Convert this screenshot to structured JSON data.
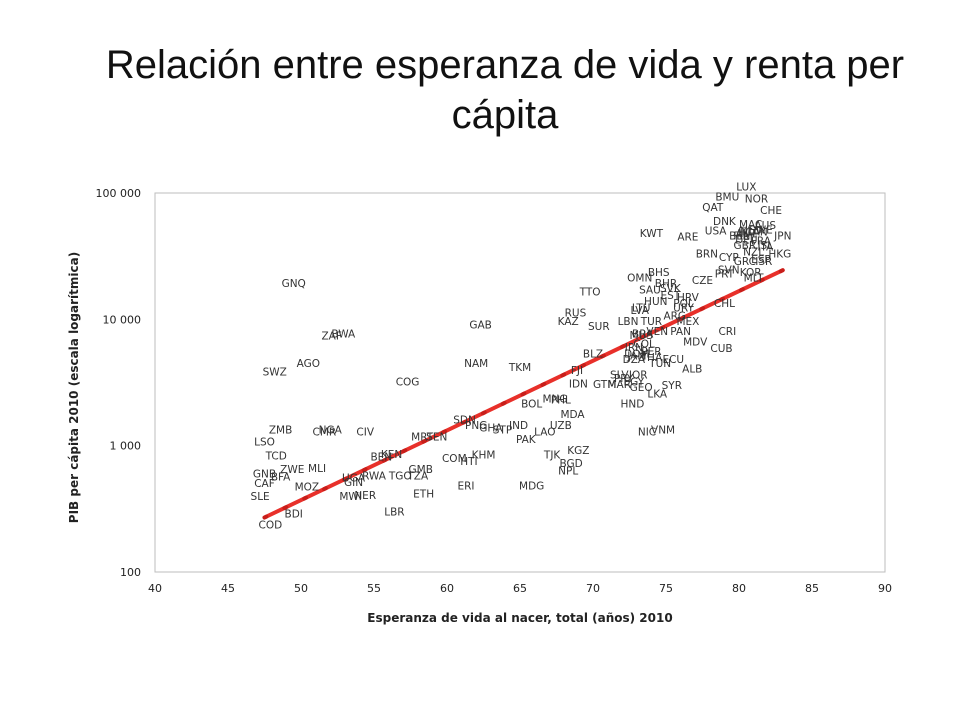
{
  "title": "Relación entre esperanza de vida y renta per cápita",
  "chart_data": {
    "type": "scatter",
    "title": "Relación entre esperanza de vida y renta per cápita",
    "xlabel": "Esperanza de vida al nacer, total (años) 2010",
    "ylabel": "PIB per cápita 2010 (escala logarítmica)",
    "xlim": [
      40,
      90
    ],
    "ylim": [
      100,
      100000
    ],
    "yscale": "log",
    "x_ticks": [
      "40",
      "45",
      "50",
      "55",
      "60",
      "65",
      "70",
      "75",
      "80",
      "85",
      "90"
    ],
    "y_ticks": [
      "100",
      "1 000",
      "10 000",
      "100 000"
    ],
    "trendline": {
      "color": "#e8302a",
      "from": [
        47.5,
        270
      ],
      "to": [
        83,
        24500
      ]
    },
    "points": [
      {
        "label": "LUX",
        "x": 80.5,
        "y": 105000
      },
      {
        "label": "BMU",
        "x": 79.2,
        "y": 87000
      },
      {
        "label": "NOR",
        "x": 81.2,
        "y": 84000
      },
      {
        "label": "QAT",
        "x": 78.2,
        "y": 72000
      },
      {
        "label": "CHE",
        "x": 82.2,
        "y": 68000
      },
      {
        "label": "DNK",
        "x": 79.0,
        "y": 56000
      },
      {
        "label": "MAC",
        "x": 80.8,
        "y": 53000
      },
      {
        "label": "AUS",
        "x": 81.8,
        "y": 52000
      },
      {
        "label": "KWT",
        "x": 74.0,
        "y": 45000
      },
      {
        "label": "USA",
        "x": 78.4,
        "y": 47000
      },
      {
        "label": "ARE",
        "x": 76.5,
        "y": 42000
      },
      {
        "label": "SWE",
        "x": 81.5,
        "y": 48000
      },
      {
        "label": "NLD",
        "x": 80.8,
        "y": 47000
      },
      {
        "label": "JPN",
        "x": 83.0,
        "y": 43000
      },
      {
        "label": "CAN",
        "x": 81.2,
        "y": 46000
      },
      {
        "label": "AUT",
        "x": 80.5,
        "y": 45000
      },
      {
        "label": "FIN",
        "x": 80.2,
        "y": 43000
      },
      {
        "label": "BEL",
        "x": 80.0,
        "y": 43000
      },
      {
        "label": "IRL",
        "x": 80.5,
        "y": 46000
      },
      {
        "label": "DEU",
        "x": 80.5,
        "y": 40000
      },
      {
        "label": "FRA",
        "x": 81.5,
        "y": 39000
      },
      {
        "label": "GBR",
        "x": 80.4,
        "y": 36000
      },
      {
        "label": "BRN",
        "x": 77.8,
        "y": 31000
      },
      {
        "label": "ISL",
        "x": 81.8,
        "y": 36000
      },
      {
        "label": "NZL",
        "x": 81.0,
        "y": 32000
      },
      {
        "label": "HKG",
        "x": 82.8,
        "y": 31000
      },
      {
        "label": "ITA",
        "x": 81.8,
        "y": 35000
      },
      {
        "label": "ESP",
        "x": 81.5,
        "y": 28000
      },
      {
        "label": "ISR",
        "x": 81.7,
        "y": 27000
      },
      {
        "label": "GRC",
        "x": 80.4,
        "y": 27000
      },
      {
        "label": "CYP",
        "x": 79.3,
        "y": 29000
      },
      {
        "label": "KOR",
        "x": 80.8,
        "y": 22000
      },
      {
        "label": "SVN",
        "x": 79.3,
        "y": 23000
      },
      {
        "label": "PRT",
        "x": 79.0,
        "y": 21500
      },
      {
        "label": "MLT",
        "x": 81.0,
        "y": 20000
      },
      {
        "label": "BHS",
        "x": 74.5,
        "y": 22000
      },
      {
        "label": "OMN",
        "x": 73.2,
        "y": 20000
      },
      {
        "label": "CZE",
        "x": 77.5,
        "y": 19000
      },
      {
        "label": "BHR",
        "x": 75.0,
        "y": 18000
      },
      {
        "label": "SAU",
        "x": 73.9,
        "y": 16000
      },
      {
        "label": "SVK",
        "x": 75.3,
        "y": 16500
      },
      {
        "label": "TTO",
        "x": 69.8,
        "y": 15500
      },
      {
        "label": "EST",
        "x": 75.3,
        "y": 14500
      },
      {
        "label": "HRV",
        "x": 76.5,
        "y": 14000
      },
      {
        "label": "HUN",
        "x": 74.3,
        "y": 13000
      },
      {
        "label": "POL",
        "x": 76.2,
        "y": 12500
      },
      {
        "label": "CHL",
        "x": 79.0,
        "y": 12500
      },
      {
        "label": "LTU",
        "x": 73.3,
        "y": 11500
      },
      {
        "label": "LVA",
        "x": 73.2,
        "y": 11000
      },
      {
        "label": "RUS",
        "x": 68.8,
        "y": 10500
      },
      {
        "label": "URY",
        "x": 76.2,
        "y": 11500
      },
      {
        "label": "ARG",
        "x": 75.6,
        "y": 10000
      },
      {
        "label": "KAZ",
        "x": 68.3,
        "y": 9000
      },
      {
        "label": "SUR",
        "x": 70.4,
        "y": 8200
      },
      {
        "label": "LBN",
        "x": 72.4,
        "y": 9000
      },
      {
        "label": "MEX",
        "x": 76.5,
        "y": 9000
      },
      {
        "label": "GAB",
        "x": 62.3,
        "y": 8500
      },
      {
        "label": "VEN",
        "x": 74.4,
        "y": 7500
      },
      {
        "label": "BRA",
        "x": 73.4,
        "y": 7200
      },
      {
        "label": "CRI",
        "x": 79.2,
        "y": 7500
      },
      {
        "label": "PAN",
        "x": 76.0,
        "y": 7500
      },
      {
        "label": "MUS",
        "x": 73.3,
        "y": 7000
      },
      {
        "label": "TUR",
        "x": 74.0,
        "y": 9000
      },
      {
        "label": "BWA",
        "x": 52.9,
        "y": 7200
      },
      {
        "label": "ZAF",
        "x": 52.1,
        "y": 6900
      },
      {
        "label": "COL",
        "x": 73.5,
        "y": 6000
      },
      {
        "label": "PER",
        "x": 74.0,
        "y": 5200
      },
      {
        "label": "ECU",
        "x": 75.5,
        "y": 4500
      },
      {
        "label": "DOM",
        "x": 73.0,
        "y": 5000
      },
      {
        "label": "THA",
        "x": 74.0,
        "y": 4700
      },
      {
        "label": "CUB",
        "x": 78.8,
        "y": 5500
      },
      {
        "label": "DZA",
        "x": 72.8,
        "y": 4500
      },
      {
        "label": "IRN",
        "x": 72.8,
        "y": 5600
      },
      {
        "label": "TUN",
        "x": 74.6,
        "y": 4200
      },
      {
        "label": "JAM",
        "x": 73.0,
        "y": 4800
      },
      {
        "label": "BLZ",
        "x": 70.0,
        "y": 5000
      },
      {
        "label": "MDV",
        "x": 77.0,
        "y": 6200
      },
      {
        "label": "ALB",
        "x": 76.8,
        "y": 3800
      },
      {
        "label": "NAM",
        "x": 62.0,
        "y": 4200
      },
      {
        "label": "GNQ",
        "x": 49.5,
        "y": 18000
      },
      {
        "label": "SWZ",
        "x": 48.2,
        "y": 3600
      },
      {
        "label": "AGO",
        "x": 50.5,
        "y": 4200
      },
      {
        "label": "TKM",
        "x": 65.0,
        "y": 3900
      },
      {
        "label": "COG",
        "x": 57.3,
        "y": 3000
      },
      {
        "label": "FJI",
        "x": 68.9,
        "y": 3700
      },
      {
        "label": "SYR",
        "x": 75.4,
        "y": 2800
      },
      {
        "label": "JOR",
        "x": 73.1,
        "y": 3400
      },
      {
        "label": "EGY",
        "x": 72.8,
        "y": 3000
      },
      {
        "label": "LKA",
        "x": 74.4,
        "y": 2400
      },
      {
        "label": "BOL",
        "x": 65.8,
        "y": 2000
      },
      {
        "label": "IDN",
        "x": 69.0,
        "y": 2900
      },
      {
        "label": "GTM",
        "x": 70.8,
        "y": 2850
      },
      {
        "label": "SLV",
        "x": 71.8,
        "y": 3400
      },
      {
        "label": "PRY",
        "x": 72.1,
        "y": 3200
      },
      {
        "label": "MNG",
        "x": 67.4,
        "y": 2200
      },
      {
        "label": "PHL",
        "x": 67.8,
        "y": 2150
      },
      {
        "label": "MAR",
        "x": 71.8,
        "y": 2850
      },
      {
        "label": "GEO",
        "x": 73.3,
        "y": 2700
      },
      {
        "label": "HND",
        "x": 72.7,
        "y": 2000
      },
      {
        "label": "MDA",
        "x": 68.6,
        "y": 1650
      },
      {
        "label": "SDN",
        "x": 61.2,
        "y": 1500
      },
      {
        "label": "PNG",
        "x": 62.0,
        "y": 1350
      },
      {
        "label": "LAO",
        "x": 66.7,
        "y": 1200
      },
      {
        "label": "UZB",
        "x": 67.8,
        "y": 1350
      },
      {
        "label": "IND",
        "x": 64.9,
        "y": 1350
      },
      {
        "label": "GHA",
        "x": 63.0,
        "y": 1300
      },
      {
        "label": "STP",
        "x": 63.8,
        "y": 1250
      },
      {
        "label": "PAK",
        "x": 65.4,
        "y": 1050
      },
      {
        "label": "VNM",
        "x": 74.8,
        "y": 1250
      },
      {
        "label": "NIC",
        "x": 73.7,
        "y": 1200
      },
      {
        "label": "KGZ",
        "x": 69.0,
        "y": 860
      },
      {
        "label": "TJK",
        "x": 67.2,
        "y": 790
      },
      {
        "label": "BGD",
        "x": 68.5,
        "y": 680
      },
      {
        "label": "NPL",
        "x": 68.3,
        "y": 590
      },
      {
        "label": "MDG",
        "x": 65.8,
        "y": 450
      },
      {
        "label": "KHM",
        "x": 62.5,
        "y": 790
      },
      {
        "label": "COM",
        "x": 60.5,
        "y": 740
      },
      {
        "label": "HTI",
        "x": 61.5,
        "y": 700
      },
      {
        "label": "ERI",
        "x": 61.3,
        "y": 450
      },
      {
        "label": "ETH",
        "x": 58.4,
        "y": 390
      },
      {
        "label": "CIV",
        "x": 54.4,
        "y": 1200
      },
      {
        "label": "MRT",
        "x": 58.3,
        "y": 1100
      },
      {
        "label": "SEN",
        "x": 59.3,
        "y": 1100
      },
      {
        "label": "ZMB",
        "x": 48.6,
        "y": 1250
      },
      {
        "label": "CMR",
        "x": 51.6,
        "y": 1200
      },
      {
        "label": "NGA",
        "x": 52.0,
        "y": 1250
      },
      {
        "label": "LSO",
        "x": 47.5,
        "y": 1000
      },
      {
        "label": "KEN",
        "x": 56.2,
        "y": 800
      },
      {
        "label": "BEN",
        "x": 55.5,
        "y": 760
      },
      {
        "label": "TCD",
        "x": 48.3,
        "y": 780
      },
      {
        "label": "ZWE",
        "x": 49.4,
        "y": 610
      },
      {
        "label": "MLI",
        "x": 51.1,
        "y": 620
      },
      {
        "label": "GMB",
        "x": 58.2,
        "y": 610
      },
      {
        "label": "RWA",
        "x": 55.0,
        "y": 540
      },
      {
        "label": "TGO",
        "x": 56.8,
        "y": 540
      },
      {
        "label": "TZA",
        "x": 58.0,
        "y": 540
      },
      {
        "label": "UGA",
        "x": 53.6,
        "y": 520
      },
      {
        "label": "GIN",
        "x": 53.6,
        "y": 480
      },
      {
        "label": "GNB",
        "x": 47.5,
        "y": 560
      },
      {
        "label": "BFA",
        "x": 48.6,
        "y": 530
      },
      {
        "label": "CAF",
        "x": 47.5,
        "y": 470
      },
      {
        "label": "MOZ",
        "x": 50.4,
        "y": 440
      },
      {
        "label": "NER",
        "x": 54.4,
        "y": 380
      },
      {
        "label": "MWI",
        "x": 53.4,
        "y": 370
      },
      {
        "label": "SLE",
        "x": 47.2,
        "y": 370
      },
      {
        "label": "BDI",
        "x": 49.5,
        "y": 270
      },
      {
        "label": "LBR",
        "x": 56.4,
        "y": 280
      },
      {
        "label": "COD",
        "x": 47.9,
        "y": 220
      }
    ]
  }
}
